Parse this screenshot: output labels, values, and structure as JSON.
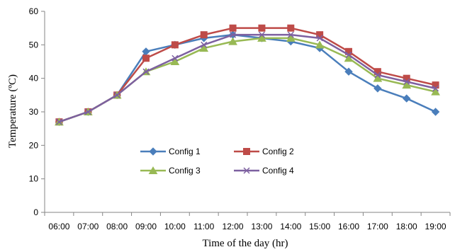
{
  "chart_data": {
    "type": "line",
    "title": "",
    "xlabel": "Time of the day (hr)",
    "ylabel": "Temperature (ºC)",
    "ylim": [
      0,
      60
    ],
    "yticks": [
      0,
      10,
      20,
      30,
      40,
      50,
      60
    ],
    "grid": false,
    "legend": "inside-lower-center",
    "categories": [
      "06:00",
      "07:00",
      "08:00",
      "09:00",
      "10:00",
      "11:00",
      "12:00",
      "13:00",
      "14:00",
      "15:00",
      "16:00",
      "17:00",
      "18:00",
      "19:00"
    ],
    "series": [
      {
        "name": "Config 1",
        "color": "#4a7ebb",
        "marker": "diamond",
        "values": [
          27,
          30,
          35,
          48,
          50,
          52,
          53,
          52,
          51,
          49,
          42,
          37,
          34,
          30
        ]
      },
      {
        "name": "Config 2",
        "color": "#be4b48",
        "marker": "square",
        "values": [
          27,
          30,
          35,
          46,
          50,
          53,
          55,
          55,
          55,
          53,
          48,
          42,
          40,
          38
        ]
      },
      {
        "name": "Config 3",
        "color": "#98b954",
        "marker": "triangle",
        "values": [
          27,
          30,
          35,
          42,
          45,
          49,
          51,
          52,
          52,
          50,
          46,
          40,
          38,
          36
        ]
      },
      {
        "name": "Config 4",
        "color": "#7d60a0",
        "marker": "x",
        "values": [
          27,
          30,
          35,
          42,
          46,
          50,
          53,
          53,
          53,
          52,
          47,
          41,
          39,
          37
        ]
      }
    ]
  }
}
